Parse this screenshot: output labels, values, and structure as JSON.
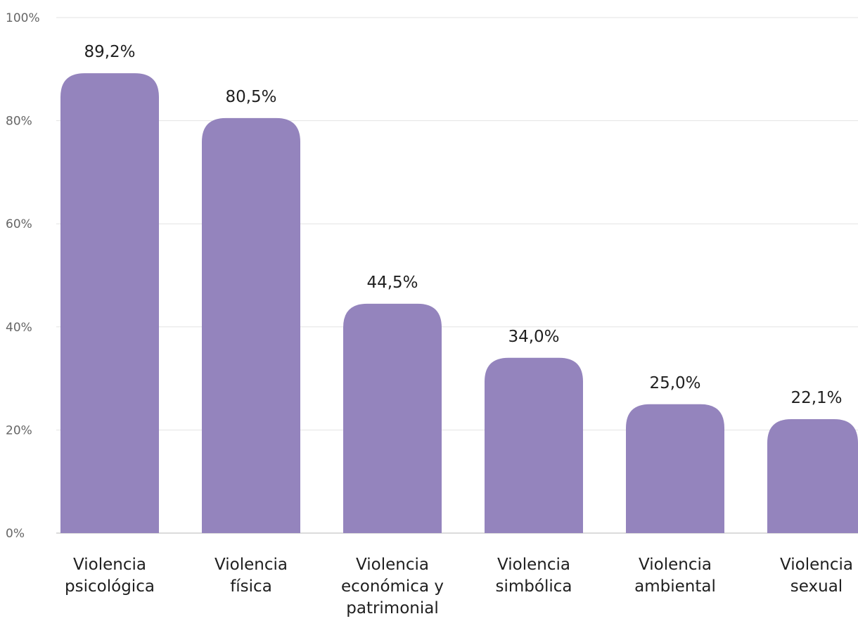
{
  "chart_data": {
    "type": "bar",
    "title": "",
    "xlabel": "",
    "ylabel": "",
    "categories": [
      [
        "Violencia",
        "psicológica"
      ],
      [
        "Violencia",
        "física"
      ],
      [
        "Violencia",
        "económica y",
        "patrimonial"
      ],
      [
        "Violencia",
        "simbólica"
      ],
      [
        "Violencia",
        "ambiental"
      ],
      [
        "Violencia",
        "sexual"
      ]
    ],
    "values": [
      89.2,
      80.5,
      44.5,
      34.0,
      25.0,
      22.1
    ],
    "data_labels": [
      "89,2%",
      "80,5%",
      "44,5%",
      "34,0%",
      "25,0%",
      "22,1%"
    ],
    "ylim": [
      0,
      100
    ],
    "yticks": [
      0,
      20,
      40,
      60,
      80,
      100
    ],
    "ytick_labels": [
      "0%",
      "20%",
      "40%",
      "60%",
      "80%",
      "100%"
    ],
    "grid": true,
    "legend": "none",
    "bar_color": "#9484bd"
  }
}
